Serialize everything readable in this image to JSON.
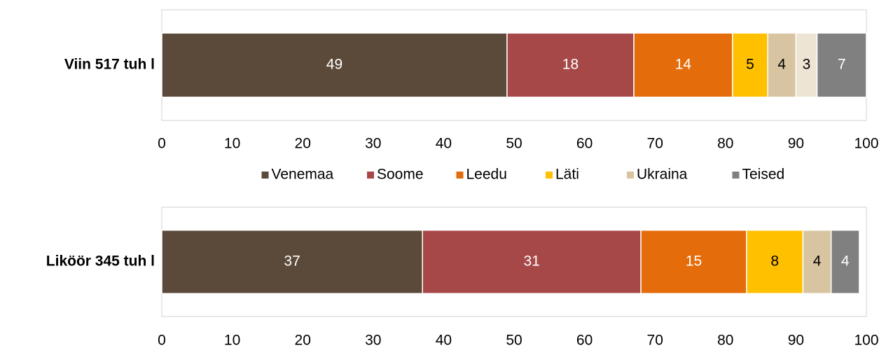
{
  "chart_data": [
    {
      "type": "bar",
      "orientation": "horizontal",
      "stacked": true,
      "categories": [
        "Viin 517 tuh l"
      ],
      "series": [
        {
          "name": "Venemaa",
          "color": "#5b4a3a",
          "values": [
            49
          ]
        },
        {
          "name": "Soome",
          "color": "#a74848",
          "values": [
            18
          ]
        },
        {
          "name": "Leedu",
          "color": "#e46c0a",
          "values": [
            14
          ]
        },
        {
          "name": "Läti",
          "color": "#ffc000",
          "values": [
            5
          ]
        },
        {
          "name": "Ukraina",
          "color": "#d8c4a0",
          "values": [
            4
          ]
        },
        {
          "name": null,
          "color": "#ede4d3",
          "values": [
            3
          ]
        },
        {
          "name": "Teised",
          "color": "#808080",
          "values": [
            7
          ]
        }
      ],
      "xlim": [
        0,
        100
      ],
      "xticks": [
        0,
        10,
        20,
        30,
        40,
        50,
        60,
        70,
        80,
        90,
        100
      ],
      "legend": "bottom"
    },
    {
      "type": "bar",
      "orientation": "horizontal",
      "stacked": true,
      "categories": [
        "Liköör 345 tuh l"
      ],
      "series": [
        {
          "color": "#5b4a3a",
          "values": [
            37
          ]
        },
        {
          "color": "#a74848",
          "values": [
            31
          ]
        },
        {
          "color": "#e46c0a",
          "values": [
            15
          ]
        },
        {
          "color": "#ffc000",
          "values": [
            8
          ]
        },
        {
          "color": "#d8c4a0",
          "values": [
            4
          ]
        },
        {
          "color": "#808080",
          "values": [
            4
          ]
        }
      ],
      "xlim": [
        0,
        100
      ],
      "xticks": [
        0,
        10,
        20,
        30,
        40,
        50,
        60,
        70,
        80,
        90,
        100
      ]
    }
  ]
}
